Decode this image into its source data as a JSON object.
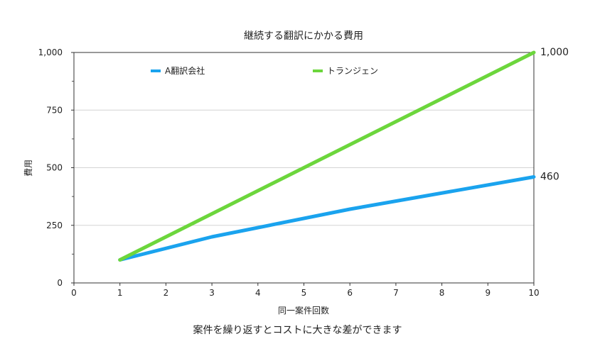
{
  "caption": "案件を繰り返すとコストに大きな差ができます",
  "chart_data": {
    "type": "line",
    "title": "継続する翻訳にかかる費用",
    "xlabel": "同一案件回数",
    "ylabel": "費用",
    "xlim": [
      0,
      10
    ],
    "ylim": [
      0,
      1000
    ],
    "xticks": [
      "0",
      "1",
      "2",
      "3",
      "4",
      "5",
      "6",
      "7",
      "8",
      "9",
      "10"
    ],
    "yticks": [
      "0",
      "250",
      "500",
      "750",
      "1,000"
    ],
    "grid": "horizontal",
    "legend_position": "top-inside",
    "series": [
      {
        "name": "A翻訳会社",
        "color": "#1aa3ee",
        "x": [
          1,
          3,
          6,
          10
        ],
        "y": [
          100,
          200,
          320,
          460
        ],
        "end_label": "460"
      },
      {
        "name": "トランジェン",
        "color": "#6cd63c",
        "x": [
          1,
          10
        ],
        "y": [
          100,
          1000
        ],
        "end_label": "1,000"
      }
    ]
  }
}
